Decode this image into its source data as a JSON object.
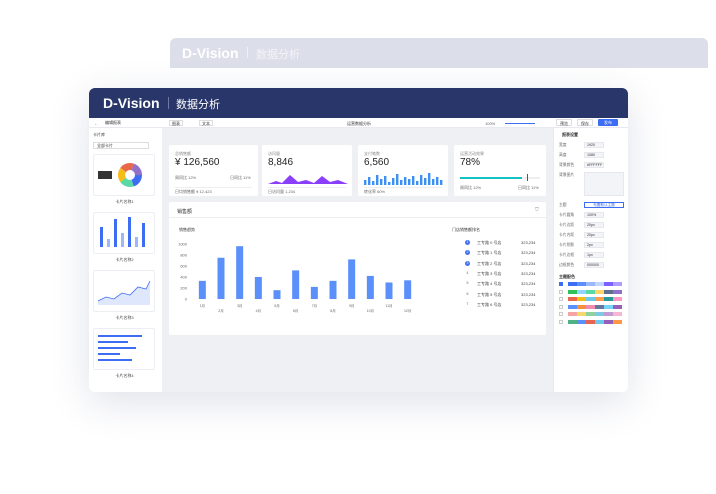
{
  "ghost_header": {
    "brand": "D-Vision",
    "title": "数据分析"
  },
  "header": {
    "brand": "D-Vision",
    "title": "数据分析"
  },
  "toolbar": {
    "chart": "图表",
    "text": "文本",
    "report_name": "运营数据分析",
    "zoom": "100%",
    "preview": "预览",
    "save": "保存",
    "publish": "发布"
  },
  "left_panel": {
    "title": "编辑报表",
    "library": "卡片库",
    "filter": "全部卡片",
    "cards": [
      "卡片名称1",
      "卡片名称2",
      "卡片名称3",
      "卡片名称4"
    ]
  },
  "kpis": [
    {
      "label": "总销售额",
      "value": "¥ 126,560",
      "foot_left": "周同比 12%",
      "foot_right": "日同比 11%",
      "bottom": "日均销售额 ¥ 12,423"
    },
    {
      "label": "访问量",
      "value": "8,846",
      "bottom": "日访问量 1,234"
    },
    {
      "label": "支付笔数",
      "value": "6,560",
      "bottom": "转化率 60%"
    },
    {
      "label": "运营活动效果",
      "value": "78%",
      "progress": 78,
      "foot_left": "周同比 12%",
      "foot_right": "日同比 11%"
    }
  ],
  "panel": {
    "title": "销售额",
    "chart_title": "销售趋势",
    "ranking_title": "门店销售额排名"
  },
  "sales_chart": {
    "type": "bar",
    "categories": [
      "1月",
      "2月",
      "3月",
      "4月",
      "5月",
      "6月",
      "7月",
      "8月",
      "9月",
      "10月",
      "11月",
      "12月"
    ],
    "values": [
      330,
      750,
      960,
      400,
      160,
      520,
      220,
      330,
      720,
      420,
      300,
      340
    ],
    "color": "#5b8ff9",
    "ylim": [
      0,
      1000
    ],
    "yticks": [
      0,
      200,
      400,
      600,
      800,
      1000
    ]
  },
  "ranking": [
    {
      "rank": "1",
      "name": "工专路 0 号店",
      "value": "323,234"
    },
    {
      "rank": "2",
      "name": "工专路 1 号店",
      "value": "323,234"
    },
    {
      "rank": "3",
      "name": "工专路 2 号店",
      "value": "323,234"
    },
    {
      "rank": "4",
      "name": "工专路 3 号店",
      "value": "323,234"
    },
    {
      "rank": "5",
      "name": "工专路 4 号店",
      "value": "323,234"
    },
    {
      "rank": "6",
      "name": "工专路 5 号店",
      "value": "323,234"
    },
    {
      "rank": "7",
      "name": "工专路 6 号店",
      "value": "323,234"
    }
  ],
  "right_panel": {
    "title": "报表设置",
    "fields": [
      {
        "label": "宽度",
        "value": "1920"
      },
      {
        "label": "高度",
        "value": "1080"
      },
      {
        "label": "背景颜色",
        "value": "#FFFFFF"
      },
      {
        "label": "背景图片",
        "value": ""
      }
    ],
    "theme_label": "主题",
    "theme_button": "布置默认主题",
    "fields2": [
      {
        "label": "卡片圆角",
        "value": "100%"
      },
      {
        "label": "卡片边距",
        "value": "20px"
      },
      {
        "label": "卡片内距",
        "value": "20px"
      },
      {
        "label": "卡片阴影",
        "value": "2px"
      },
      {
        "label": "卡片边框",
        "value": "1px"
      },
      {
        "label": "边框颜色",
        "value": "000000"
      }
    ],
    "palette_title": "主题配色",
    "palette": [
      [
        "#3d6df2",
        "#5b8ff9",
        "#9ab8fb",
        "#c2d5fd",
        "#7b61ff",
        "#b09cff"
      ],
      [
        "#2fc25b",
        "#91d5ff",
        "#5ad8a6",
        "#ffd666",
        "#5d7092",
        "#9270ca"
      ],
      [
        "#e8684a",
        "#f6bd16",
        "#6dc8ec",
        "#ff9d4d",
        "#269a99",
        "#ff99c3"
      ],
      [
        "#5b8ff9",
        "#f6903d",
        "#f08bb4",
        "#65789b",
        "#78d3f8",
        "#9661bc"
      ],
      [
        "#f5a3a3",
        "#f5d76e",
        "#8fd19e",
        "#7ec8e3",
        "#c39bd3",
        "#f7b6d2"
      ],
      [
        "#4fb286",
        "#5b8ff9",
        "#e86452",
        "#6dc8ec",
        "#945fb9",
        "#ff9845"
      ]
    ]
  }
}
